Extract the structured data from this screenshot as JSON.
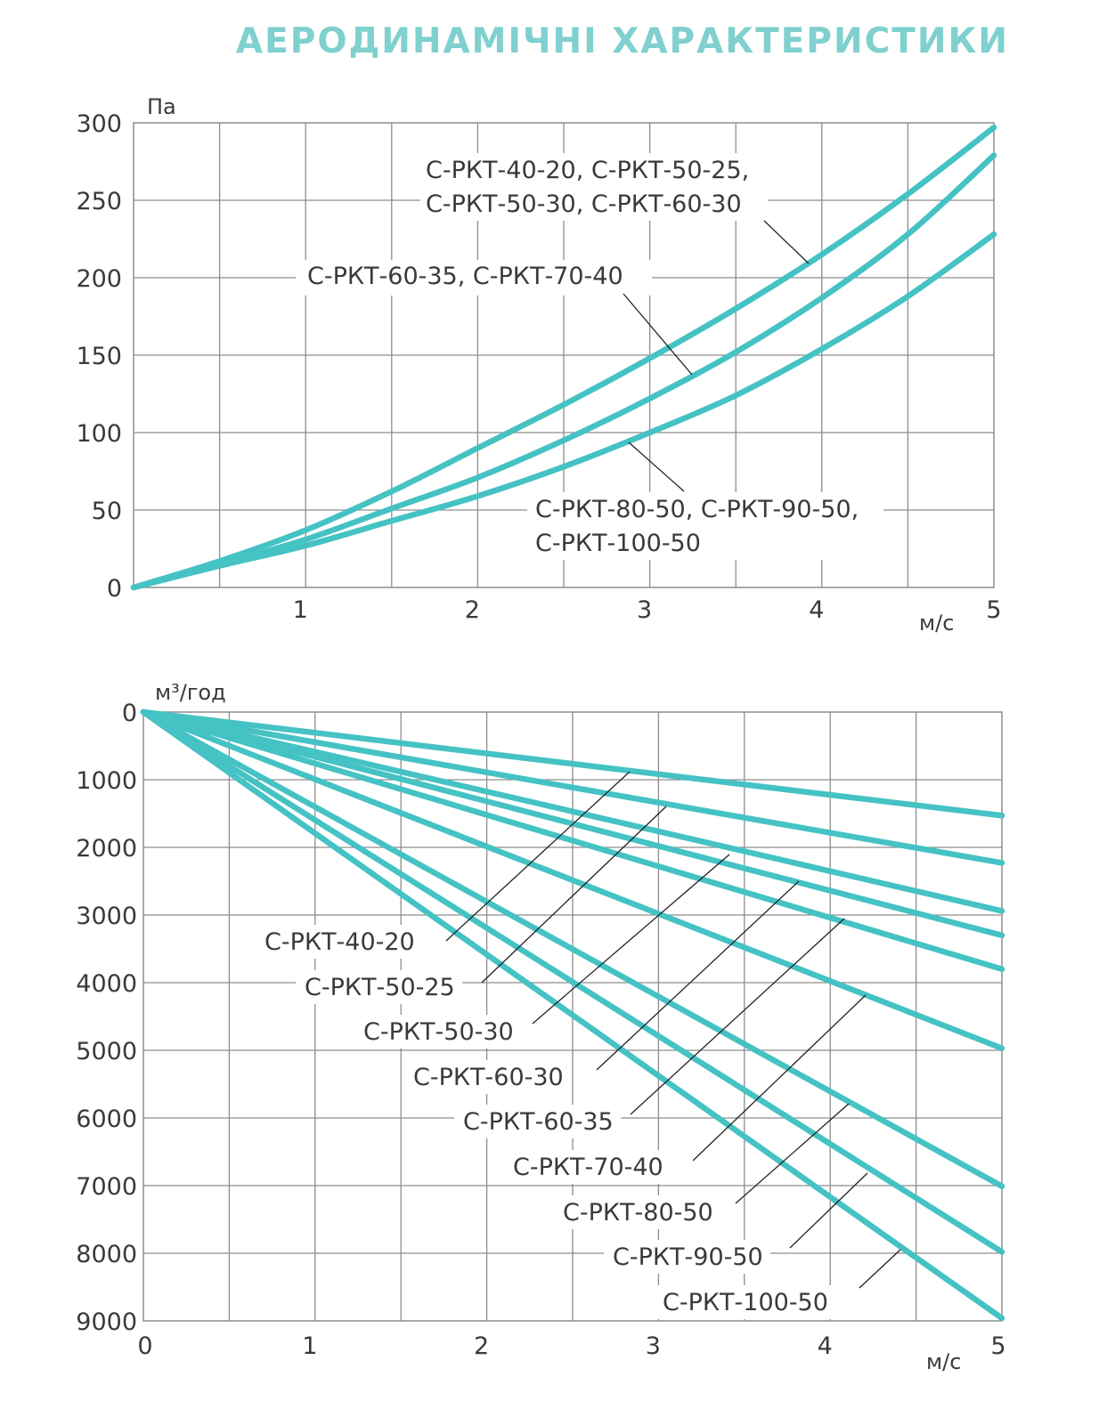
{
  "title": "АЕРОДИНАМІЧНІ ХАРАКТЕРИСТИКИ",
  "colors": {
    "title": "#7fd0cf",
    "curve": "#45c2c4",
    "grid": "#8d8d8d",
    "text": "#3a3a3a"
  },
  "chart_data": [
    {
      "type": "line",
      "xlabel": "м/с",
      "ylabel": "Па",
      "xlim": [
        0,
        5
      ],
      "ylim": [
        0,
        300
      ],
      "x_ticks": [
        "1",
        "2",
        "3",
        "4",
        "5"
      ],
      "y_ticks": [
        "0",
        "50",
        "100",
        "150",
        "200",
        "250",
        "300"
      ],
      "grid": true,
      "x": [
        0,
        0.5,
        1,
        1.5,
        2,
        2.5,
        3,
        3.5,
        4,
        4.5,
        5
      ],
      "series": [
        {
          "name": "С-РКТ-40-20, С-РКТ-50-25, С-РКТ-50-30, С-РКТ-60-30",
          "label_lines": [
            "С-РКТ-40-20, С-РКТ-50-25,",
            "С-РКТ-50-30, С-РКТ-60-30"
          ],
          "values": [
            0,
            17,
            37,
            62,
            90,
            118,
            148,
            180,
            215,
            254,
            297
          ]
        },
        {
          "name": "С-РКТ-60-35, С-РКТ-70-40",
          "label_lines": [
            "С-РКТ-60-35, С-РКТ-70-40"
          ],
          "values": [
            0,
            15,
            31,
            51,
            71,
            95,
            122,
            152,
            187,
            228,
            279
          ]
        },
        {
          "name": "С-РКТ-80-50, С-РКТ-90-50, С-РКТ-100-50",
          "label_lines": [
            "С-РКТ-80-50, С-РКТ-90-50,",
            "С-РКТ-100-50"
          ],
          "values": [
            0,
            14,
            27,
            43,
            59,
            78,
            100,
            124,
            154,
            188,
            228
          ]
        }
      ]
    },
    {
      "type": "line",
      "xlabel": "м/с",
      "ylabel": "м³/год",
      "xlim": [
        0,
        5
      ],
      "ylim": [
        0,
        9000
      ],
      "y_inverted": true,
      "x_ticks": [
        "0",
        "1",
        "2",
        "3",
        "4",
        "5"
      ],
      "y_ticks": [
        "0",
        "1000",
        "2000",
        "3000",
        "4000",
        "5000",
        "6000",
        "7000",
        "8000",
        "9000"
      ],
      "grid": true,
      "x": [
        0,
        5
      ],
      "series": [
        {
          "name": "С-РКТ-40-20",
          "values": [
            0,
            1530
          ]
        },
        {
          "name": "С-РКТ-50-25",
          "values": [
            0,
            2230
          ]
        },
        {
          "name": "С-РКТ-50-30",
          "values": [
            0,
            2940
          ]
        },
        {
          "name": "С-РКТ-60-30",
          "values": [
            0,
            3300
          ]
        },
        {
          "name": "С-РКТ-60-35",
          "values": [
            0,
            3800
          ]
        },
        {
          "name": "С-РКТ-70-40",
          "values": [
            0,
            4970
          ]
        },
        {
          "name": "С-РКТ-80-50",
          "values": [
            0,
            7010
          ]
        },
        {
          "name": "С-РКТ-90-50",
          "values": [
            0,
            7980
          ]
        },
        {
          "name": "С-РКТ-100-50",
          "values": [
            0,
            8960
          ]
        }
      ]
    }
  ]
}
